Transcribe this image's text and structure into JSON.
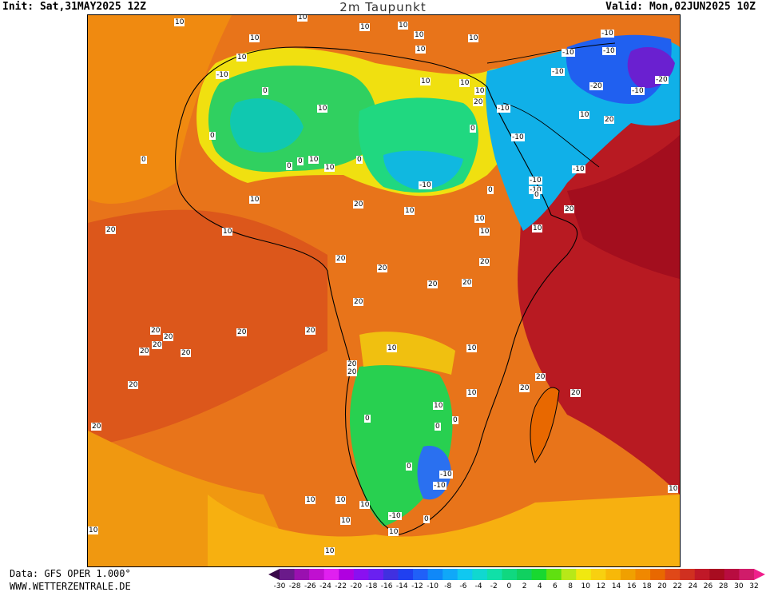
{
  "header": {
    "init": "Init: Sat,31MAY2025 12Z",
    "title": "2m Taupunkt",
    "valid": "Valid: Mon,02JUN2025 10Z"
  },
  "footer": {
    "data_source": "Data: GFS OPER 1.000°",
    "website": "WWW.WETTERZENTRALE.DE"
  },
  "colorbar": {
    "colors": [
      "#3a0a4a",
      "#6a1a8a",
      "#9a10b0",
      "#c010d0",
      "#e020f0",
      "#b000e0",
      "#8a10f0",
      "#6a20f0",
      "#4030e0",
      "#2040f0",
      "#2060f8",
      "#1088f8",
      "#10a8f8",
      "#10c8f0",
      "#10d8d0",
      "#10e0a8",
      "#10d880",
      "#10d060",
      "#18d830",
      "#60e010",
      "#b8e818",
      "#f0e810",
      "#f8d010",
      "#f8b808",
      "#f0a000",
      "#f08800",
      "#e86800",
      "#e04818",
      "#d03020",
      "#c01828",
      "#a80c20",
      "#b80c40",
      "#d01c6a",
      "#f0208c"
    ],
    "ticks": [
      "-30",
      "-28",
      "-26",
      "-24",
      "-22",
      "-20",
      "-18",
      "-16",
      "-14",
      "-12",
      "-10",
      "-8",
      "-6",
      "-4",
      "-2",
      "0",
      "2",
      "4",
      "6",
      "8",
      "10",
      "12",
      "14",
      "16",
      "18",
      "20",
      "22",
      "24",
      "26",
      "28",
      "30",
      "32"
    ]
  },
  "map": {
    "contour_labels": [
      "10",
      "10",
      "10",
      "10",
      "10",
      "10",
      "10",
      "10",
      "10",
      "-10",
      "-10",
      "-10",
      "-10",
      "-10",
      "-20",
      "-10",
      "-20",
      "-10",
      "10",
      "10",
      "10",
      "0",
      "20",
      "10",
      "0",
      "10",
      "-10",
      "-10",
      "0",
      "-10",
      "10",
      "20",
      "0",
      "0",
      "0",
      "10",
      "0",
      "-10",
      "10",
      "20",
      "10",
      "10",
      "-10",
      "0",
      "20",
      "0",
      "20",
      "10",
      "10",
      "10",
      "20",
      "20",
      "20",
      "20",
      "20",
      "20",
      "20",
      "20",
      "20",
      "20",
      "20",
      "20",
      "20",
      "10",
      "10",
      "20",
      "20",
      "20",
      "20",
      "20",
      "20",
      "10",
      "0",
      "10",
      "0",
      "0",
      "0",
      "-10",
      "-10",
      "-10",
      "10",
      "10",
      "10",
      "10",
      "10",
      "0",
      "10",
      "10",
      "20",
      "10",
      "10"
    ]
  }
}
